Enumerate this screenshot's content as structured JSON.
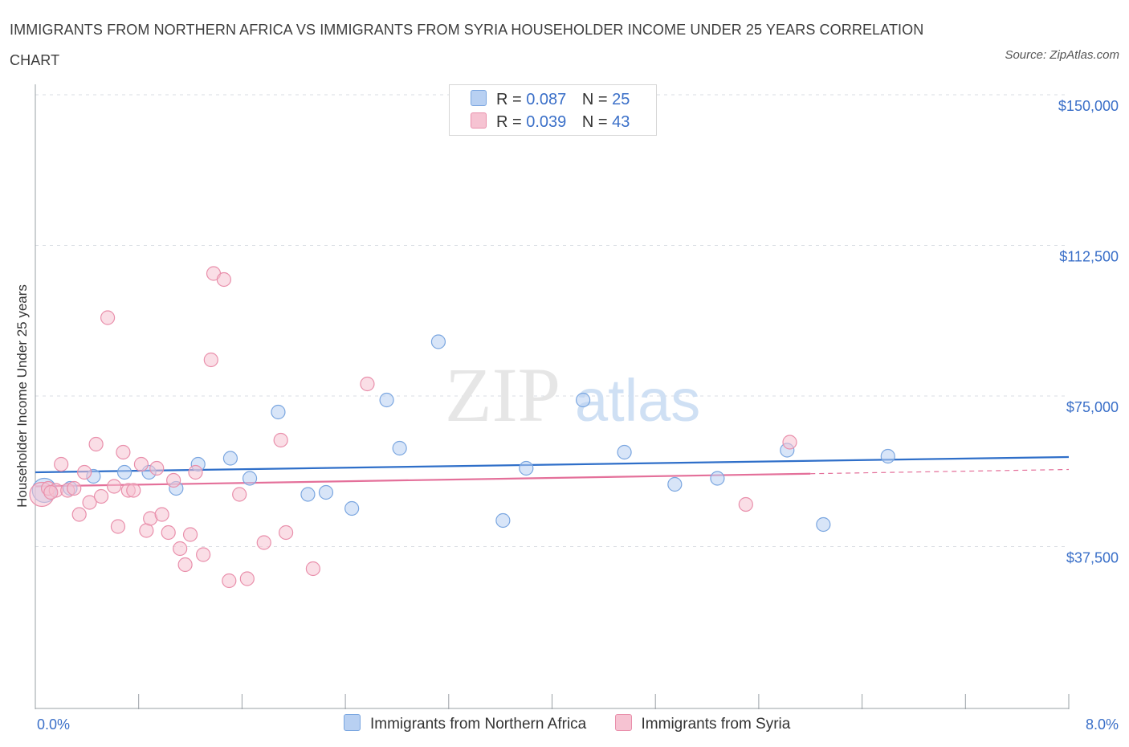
{
  "title": "IMMIGRANTS FROM NORTHERN AFRICA VS IMMIGRANTS FROM SYRIA HOUSEHOLDER INCOME UNDER 25 YEARS CORRELATION CHART",
  "source": "Source: ZipAtlas.com",
  "watermark": {
    "zip": "ZIP",
    "atlas": "atlas"
  },
  "colors": {
    "blue_fill": "#b8d0f2",
    "blue_stroke": "#7aa6e0",
    "blue_line": "#2f6fc9",
    "pink_fill": "#f6c3d2",
    "pink_stroke": "#e98fab",
    "pink_line": "#e4709a",
    "tick_text": "#3a6fc8",
    "grid": "#d9dde3"
  },
  "legend": {
    "rows": [
      {
        "r_label": "R =",
        "r_value": "0.087",
        "n_label": "N =",
        "n_value": "25"
      },
      {
        "r_label": "R =",
        "r_value": "0.039",
        "n_label": "N =",
        "n_value": "43"
      }
    ]
  },
  "bottom_legend": {
    "series1": "Immigrants from Northern Africa",
    "series2": "Immigrants from Syria"
  },
  "chart_data": {
    "type": "scatter",
    "title": "IMMIGRANTS FROM NORTHERN AFRICA VS IMMIGRANTS FROM SYRIA HOUSEHOLDER INCOME UNDER 25 YEARS CORRELATION CHART",
    "xlabel": "",
    "ylabel": "Householder Income Under 25 years",
    "xlim": [
      0,
      8
    ],
    "ylim": [
      0,
      150000
    ],
    "x_tick_labels": [
      "0.0%",
      "8.0%"
    ],
    "y_ticks": [
      {
        "value": 150000,
        "label": "$150,000"
      },
      {
        "value": 112500,
        "label": "$112,500"
      },
      {
        "value": 75000,
        "label": "$75,000"
      },
      {
        "value": 37500,
        "label": "$37,500"
      }
    ],
    "series": [
      {
        "name": "Immigrants from Northern Africa",
        "color": "blue",
        "trend": {
          "x": [
            0.0,
            8.0
          ],
          "y": [
            56000,
            59800
          ],
          "dashed_from": null
        },
        "points": [
          {
            "x": 0.07,
            "y": 51500,
            "big": true
          },
          {
            "x": 0.27,
            "y": 52000
          },
          {
            "x": 0.45,
            "y": 55000
          },
          {
            "x": 0.69,
            "y": 56000
          },
          {
            "x": 0.88,
            "y": 56000
          },
          {
            "x": 1.09,
            "y": 52000
          },
          {
            "x": 1.26,
            "y": 58000
          },
          {
            "x": 1.51,
            "y": 59500
          },
          {
            "x": 1.66,
            "y": 54500
          },
          {
            "x": 1.88,
            "y": 71000
          },
          {
            "x": 2.11,
            "y": 50500
          },
          {
            "x": 2.25,
            "y": 51000
          },
          {
            "x": 2.45,
            "y": 47000
          },
          {
            "x": 2.72,
            "y": 74000
          },
          {
            "x": 2.82,
            "y": 62000
          },
          {
            "x": 3.12,
            "y": 88500
          },
          {
            "x": 3.62,
            "y": 44000
          },
          {
            "x": 3.8,
            "y": 57000
          },
          {
            "x": 4.24,
            "y": 74000
          },
          {
            "x": 4.56,
            "y": 61000
          },
          {
            "x": 4.95,
            "y": 53000
          },
          {
            "x": 5.28,
            "y": 54500
          },
          {
            "x": 5.82,
            "y": 61500
          },
          {
            "x": 6.1,
            "y": 43000
          },
          {
            "x": 6.6,
            "y": 60000
          }
        ]
      },
      {
        "name": "Immigrants from Syria",
        "color": "pink",
        "trend": {
          "x": [
            0.0,
            8.0
          ],
          "y": [
            52500,
            56700
          ],
          "dashed_from": 6.0
        },
        "points": [
          {
            "x": 0.05,
            "y": 50500,
            "big": true
          },
          {
            "x": 0.1,
            "y": 52000
          },
          {
            "x": 0.16,
            "y": 51500
          },
          {
            "x": 0.2,
            "y": 58000
          },
          {
            "x": 0.25,
            "y": 51500
          },
          {
            "x": 0.34,
            "y": 45500
          },
          {
            "x": 0.38,
            "y": 56000
          },
          {
            "x": 0.42,
            "y": 48500
          },
          {
            "x": 0.47,
            "y": 63000
          },
          {
            "x": 0.51,
            "y": 50000
          },
          {
            "x": 0.56,
            "y": 94500
          },
          {
            "x": 0.61,
            "y": 52500
          },
          {
            "x": 0.64,
            "y": 42500
          },
          {
            "x": 0.68,
            "y": 61000
          },
          {
            "x": 0.72,
            "y": 51500
          },
          {
            "x": 0.76,
            "y": 51500
          },
          {
            "x": 0.82,
            "y": 58000
          },
          {
            "x": 0.86,
            "y": 41500
          },
          {
            "x": 0.89,
            "y": 44500
          },
          {
            "x": 0.94,
            "y": 57000
          },
          {
            "x": 0.98,
            "y": 45500
          },
          {
            "x": 1.03,
            "y": 41000
          },
          {
            "x": 1.07,
            "y": 54000
          },
          {
            "x": 1.12,
            "y": 37000
          },
          {
            "x": 1.16,
            "y": 33000
          },
          {
            "x": 1.2,
            "y": 40500
          },
          {
            "x": 1.24,
            "y": 56000
          },
          {
            "x": 1.3,
            "y": 35500
          },
          {
            "x": 1.36,
            "y": 84000
          },
          {
            "x": 1.38,
            "y": 105500
          },
          {
            "x": 1.46,
            "y": 104000
          },
          {
            "x": 1.5,
            "y": 29000
          },
          {
            "x": 1.58,
            "y": 50500
          },
          {
            "x": 1.64,
            "y": 29500
          },
          {
            "x": 1.77,
            "y": 38500
          },
          {
            "x": 1.9,
            "y": 64000
          },
          {
            "x": 1.94,
            "y": 41000
          },
          {
            "x": 2.15,
            "y": 32000
          },
          {
            "x": 2.57,
            "y": 78000
          },
          {
            "x": 5.5,
            "y": 48000
          },
          {
            "x": 5.84,
            "y": 63500
          },
          {
            "x": 0.12,
            "y": 51000
          },
          {
            "x": 0.3,
            "y": 52000
          }
        ]
      }
    ]
  }
}
